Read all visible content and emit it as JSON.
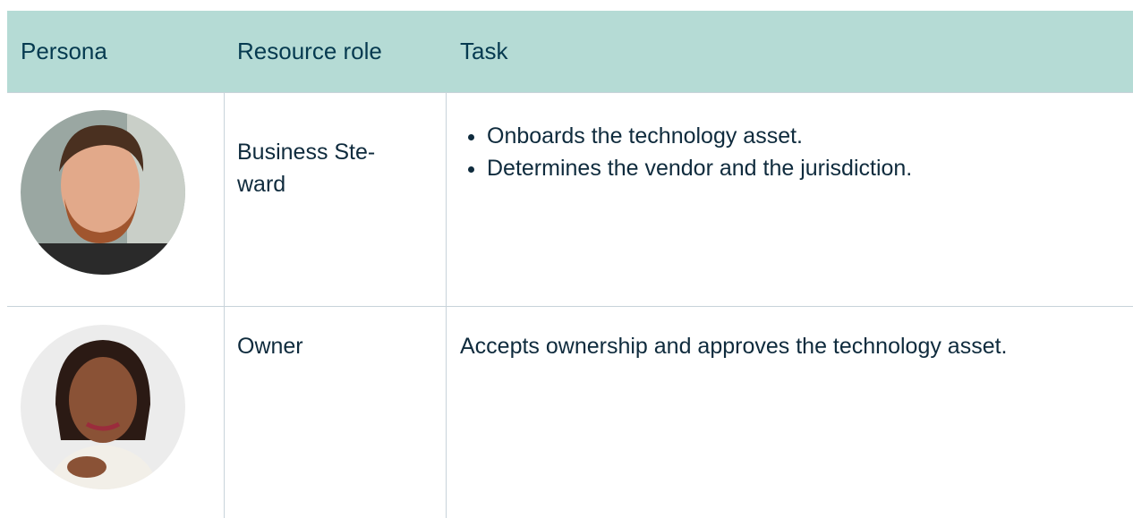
{
  "table": {
    "header": [
      "Persona",
      "Resource role",
      "Task"
    ],
    "rows": [
      {
        "role_lines": [
          "Business Ste-",
          "ward"
        ],
        "tasks": [
          "Onboards the technology asset.",
          "Determines the vendor and the jurisdiction."
        ]
      },
      {
        "role_lines": [
          "Owner"
        ],
        "task": "Accepts ownership and approves the technology asset."
      }
    ]
  }
}
